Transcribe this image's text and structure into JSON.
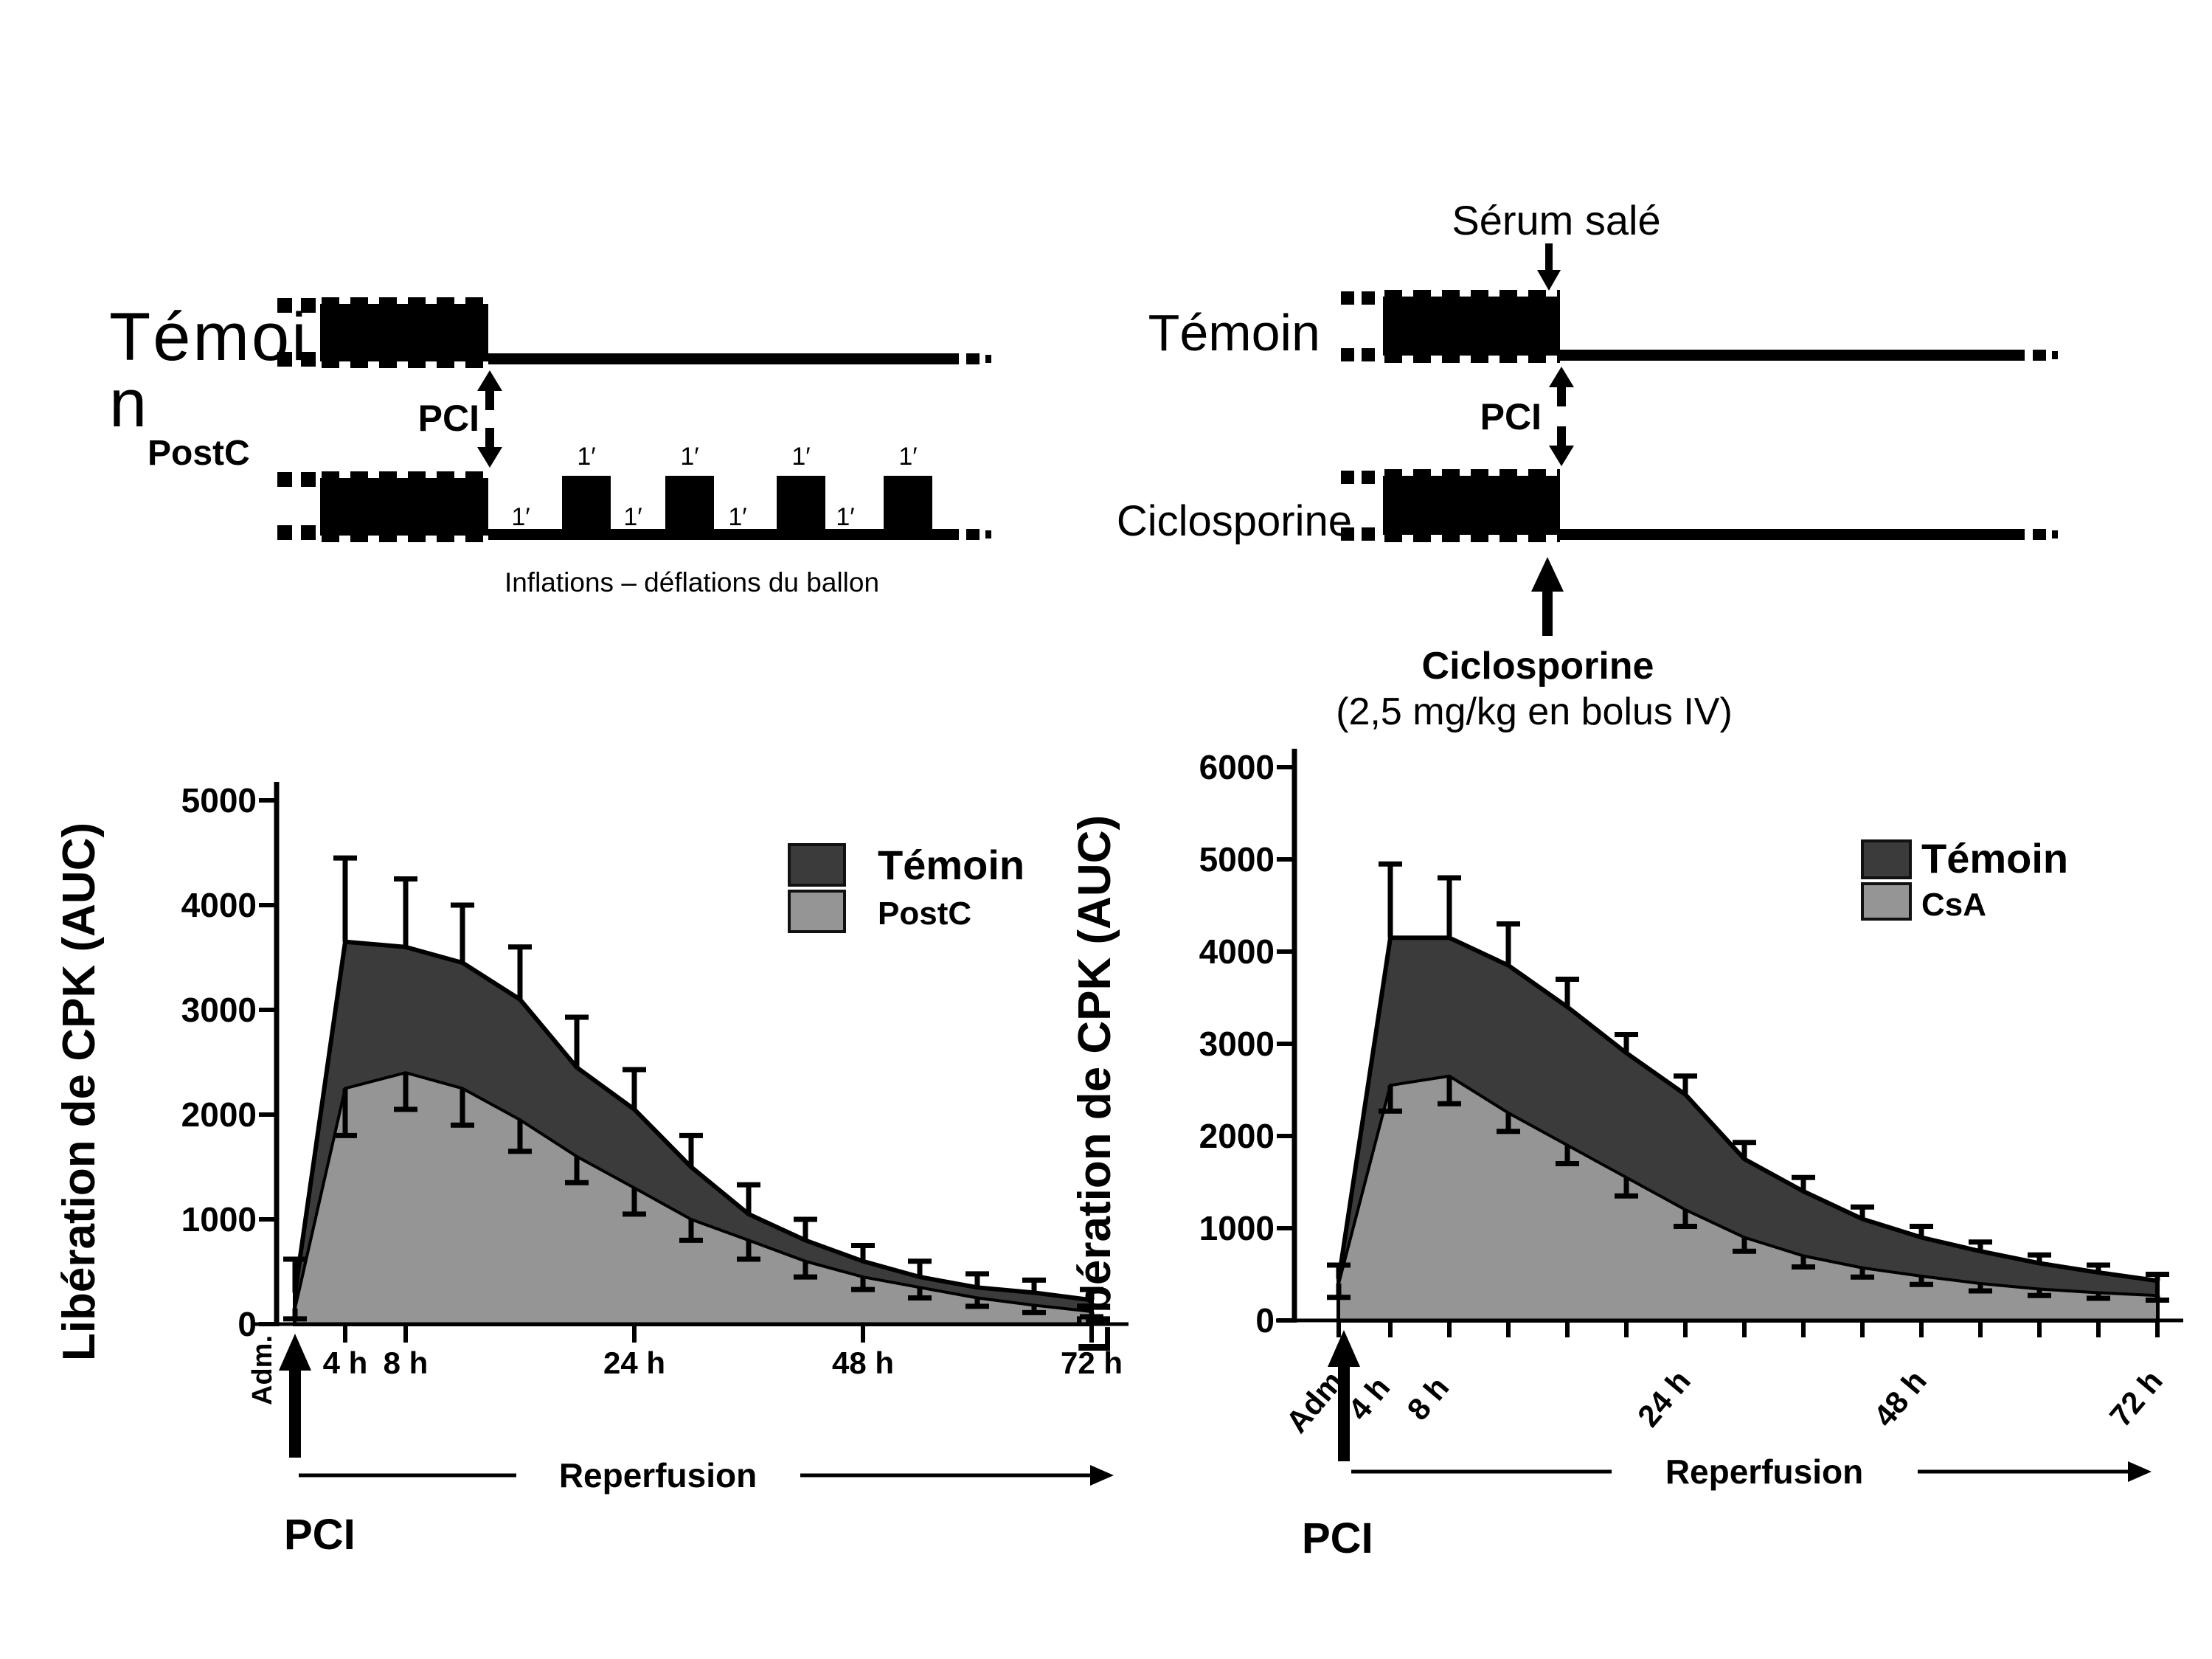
{
  "colors": {
    "dark": "#3b3b3b",
    "gray": "#959595",
    "black": "#000000"
  },
  "protocol_left": {
    "group1_label_lines": [
      "Témoi",
      "n"
    ],
    "group2_label": "PostC",
    "pci_label": "PCI",
    "pulse_top_labels": [
      "1′",
      "1′",
      "1′",
      "1′"
    ],
    "pulse_gap_labels": [
      "1′",
      "1′",
      "1′",
      "1′"
    ],
    "caption": "Inflations – déflations du ballon"
  },
  "protocol_right": {
    "saline_label": "Sérum salé",
    "group1_label": "Témoin",
    "group2_label": "Ciclosporine",
    "pci_label": "PCI",
    "drug_name": "Ciclosporine",
    "drug_dose": "(2,5 mg/kg en bolus IV)"
  },
  "chart_data": [
    {
      "type": "area",
      "ylabel": "Libération de CPK (AUC)",
      "ylim": [
        0,
        5000
      ],
      "yticks": [
        0,
        1000,
        2000,
        3000,
        4000,
        5000
      ],
      "x_hours": [
        0,
        4,
        8,
        12,
        16,
        20,
        24,
        30,
        36,
        42,
        48,
        54,
        60,
        66,
        72
      ],
      "xtick_labels": [
        {
          "t": 4,
          "label": "4 h"
        },
        {
          "t": 8,
          "label": "8 h"
        },
        {
          "t": 24,
          "label": "24 h"
        },
        {
          "t": 48,
          "label": "48 h"
        },
        {
          "t": 72,
          "label": "72 h"
        }
      ],
      "adm_label": "Adm.",
      "pci_label": "PCI",
      "reperfusion_label": "Reperfusion",
      "legend": [
        {
          "name": "Témoin",
          "color": "dark"
        },
        {
          "name": "PostC",
          "color": "gray"
        }
      ],
      "series": [
        {
          "name": "Témoin",
          "fill": "dark",
          "err_dir": "up",
          "values": [
            300,
            3650,
            3600,
            3450,
            3100,
            2450,
            2050,
            1500,
            1050,
            800,
            600,
            450,
            350,
            300,
            230
          ],
          "errors": [
            320,
            800,
            650,
            550,
            500,
            480,
            380,
            300,
            280,
            200,
            150,
            150,
            130,
            120,
            100
          ]
        },
        {
          "name": "PostC",
          "fill": "gray",
          "err_dir": "down",
          "values": [
            150,
            2250,
            2400,
            2250,
            1950,
            1600,
            1300,
            1000,
            800,
            600,
            450,
            350,
            250,
            180,
            120
          ],
          "errors": [
            100,
            450,
            350,
            350,
            300,
            250,
            250,
            200,
            180,
            150,
            120,
            100,
            80,
            70,
            50
          ]
        }
      ]
    },
    {
      "type": "area",
      "ylabel": "Libération de CPK (AUC)",
      "ylim": [
        0,
        6000
      ],
      "yticks": [
        0,
        1000,
        2000,
        3000,
        4000,
        5000,
        6000
      ],
      "x_hours": [
        0,
        4,
        8,
        12,
        16,
        20,
        24,
        30,
        36,
        42,
        48,
        54,
        60,
        66,
        72
      ],
      "xtick_labels": [
        {
          "t": 0,
          "label": "Adm."
        },
        {
          "t": 4,
          "label": "4 h"
        },
        {
          "t": 8,
          "label": "8 h"
        },
        {
          "t": 24,
          "label": "24 h"
        },
        {
          "t": 48,
          "label": "48 h"
        },
        {
          "t": 72,
          "label": "72 h"
        }
      ],
      "pci_label": "PCI",
      "reperfusion_label": "Reperfusion",
      "legend": [
        {
          "name": "Témoin",
          "color": "dark"
        },
        {
          "name": "CsA",
          "color": "gray"
        }
      ],
      "series": [
        {
          "name": "Témoin",
          "fill": "dark",
          "err_dir": "up",
          "values": [
            450,
            4150,
            4150,
            3850,
            3400,
            2900,
            2450,
            1750,
            1400,
            1100,
            900,
            750,
            620,
            520,
            430
          ],
          "errors": [
            150,
            800,
            650,
            450,
            300,
            200,
            200,
            180,
            150,
            130,
            120,
            100,
            90,
            80,
            70
          ]
        },
        {
          "name": "CsA",
          "fill": "gray",
          "err_dir": "down",
          "values": [
            400,
            2550,
            2650,
            2250,
            1900,
            1550,
            1200,
            900,
            700,
            570,
            480,
            400,
            340,
            300,
            270
          ],
          "errors": [
            150,
            280,
            300,
            200,
            200,
            200,
            180,
            150,
            120,
            100,
            90,
            80,
            70,
            60,
            50
          ]
        }
      ]
    }
  ]
}
